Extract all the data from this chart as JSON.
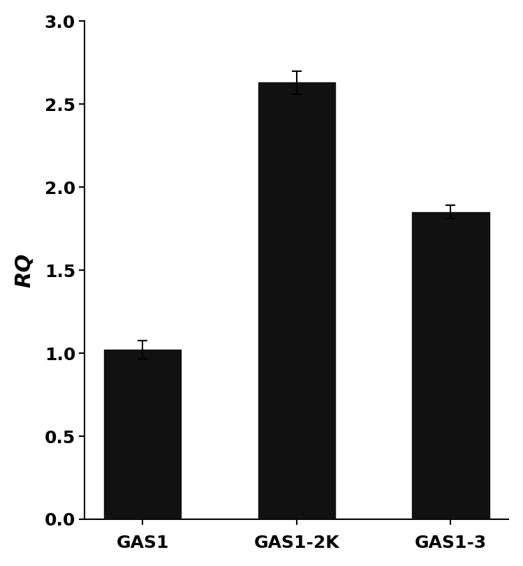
{
  "categories": [
    "GAS1",
    "GAS1-2K",
    "GAS1-3"
  ],
  "values": [
    1.02,
    2.63,
    1.85
  ],
  "errors": [
    0.055,
    0.07,
    0.04
  ],
  "bar_color": "#111111",
  "ylabel": "RQ",
  "ylim": [
    0.0,
    3.0
  ],
  "yticks": [
    0.0,
    0.5,
    1.0,
    1.5,
    2.0,
    2.5,
    3.0
  ],
  "bar_width": 0.5,
  "figsize": [
    7.49,
    8.11
  ],
  "dpi": 100
}
